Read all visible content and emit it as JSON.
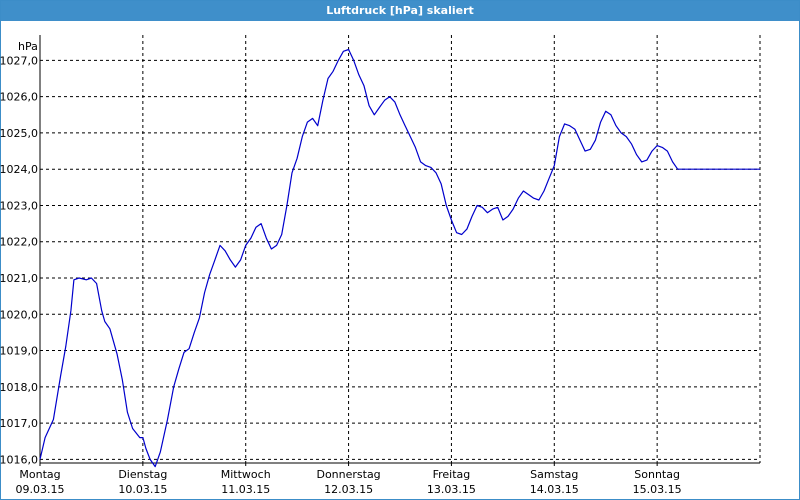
{
  "window": {
    "title": "Luftdruck [hPa] skaliert"
  },
  "chart_data": {
    "type": "line",
    "title": "Luftdruck [hPa] skaliert",
    "ylabel": "hPa",
    "ylim": [
      1015.9,
      1027.7
    ],
    "yticks": [
      "1016,0",
      "1017,0",
      "1018,0",
      "1019,0",
      "1020,0",
      "1021,0",
      "1022,0",
      "1023,0",
      "1024,0",
      "1025,0",
      "1026,0",
      "1027,0"
    ],
    "ytick_values": [
      1016,
      1017,
      1018,
      1019,
      1020,
      1021,
      1022,
      1023,
      1024,
      1025,
      1026,
      1027
    ],
    "xlim": [
      0,
      7
    ],
    "xticks": [
      {
        "day": "Montag",
        "date": "09.03.15"
      },
      {
        "day": "Dienstag",
        "date": "10.03.15"
      },
      {
        "day": "Mittwoch",
        "date": "11.03.15"
      },
      {
        "day": "Donnerstag",
        "date": "12.03.15"
      },
      {
        "day": "Freitag",
        "date": "13.03.15"
      },
      {
        "day": "Samstag",
        "date": "14.03.15"
      },
      {
        "day": "Sonntag",
        "date": "15.03.15"
      }
    ],
    "grid": true,
    "colors": {
      "line": "#0000cc",
      "axis": "#000000",
      "grid": "#000000"
    },
    "x": [
      0,
      0.05,
      0.13,
      0.2,
      0.25,
      0.3,
      0.33,
      0.38,
      0.45,
      0.5,
      0.55,
      0.6,
      0.63,
      0.68,
      0.75,
      0.8,
      0.85,
      0.9,
      0.97,
      1.0,
      1.03,
      1.07,
      1.12,
      1.17,
      1.24,
      1.3,
      1.35,
      1.4,
      1.45,
      1.5,
      1.55,
      1.6,
      1.65,
      1.7,
      1.75,
      1.8,
      1.85,
      1.9,
      1.95,
      2.0,
      2.05,
      2.1,
      2.15,
      2.2,
      2.25,
      2.3,
      2.35,
      2.4,
      2.45,
      2.5,
      2.55,
      2.6,
      2.65,
      2.7,
      2.75,
      2.8,
      2.85,
      2.9,
      2.95,
      3.0,
      3.05,
      3.1,
      3.15,
      3.2,
      3.25,
      3.3,
      3.35,
      3.4,
      3.45,
      3.5,
      3.55,
      3.6,
      3.65,
      3.7,
      3.75,
      3.8,
      3.85,
      3.9,
      3.95,
      4.0,
      4.05,
      4.1,
      4.15,
      4.2,
      4.25,
      4.3,
      4.35,
      4.4,
      4.45,
      4.5,
      4.55,
      4.6,
      4.65,
      4.7,
      4.75,
      4.8,
      4.85,
      4.9,
      4.95,
      5.0,
      5.05,
      5.1,
      5.15,
      5.2,
      5.25,
      5.3,
      5.35,
      5.4,
      5.45,
      5.5,
      5.55,
      5.6,
      5.65,
      5.7,
      5.75,
      5.8,
      5.85,
      5.9,
      5.95,
      6.0,
      6.05,
      6.1,
      6.15,
      6.2,
      6.25,
      6.3,
      6.35,
      6.4,
      6.45,
      6.5,
      6.55,
      6.6,
      6.65,
      6.7,
      6.75,
      6.8,
      6.85,
      6.9,
      6.95,
      7.0
    ],
    "values": [
      1016.0,
      1016.6,
      1017.1,
      1018.3,
      1019.1,
      1020.1,
      1020.95,
      1021.0,
      1020.95,
      1021.0,
      1020.85,
      1020.1,
      1019.8,
      1019.6,
      1018.9,
      1018.2,
      1017.3,
      1016.85,
      1016.6,
      1016.6,
      1016.3,
      1016.0,
      1015.8,
      1016.2,
      1017.1,
      1018.0,
      1018.5,
      1018.95,
      1019.05,
      1019.5,
      1019.9,
      1020.6,
      1021.1,
      1021.5,
      1021.9,
      1021.75,
      1021.5,
      1021.3,
      1021.5,
      1021.9,
      1022.1,
      1022.4,
      1022.5,
      1022.1,
      1021.8,
      1021.9,
      1022.2,
      1023.0,
      1023.9,
      1024.3,
      1024.9,
      1025.3,
      1025.4,
      1025.2,
      1025.9,
      1026.5,
      1026.7,
      1027.0,
      1027.25,
      1027.3,
      1027.0,
      1026.6,
      1026.3,
      1025.75,
      1025.5,
      1025.7,
      1025.9,
      1026.0,
      1025.85,
      1025.5,
      1025.2,
      1024.9,
      1024.6,
      1024.2,
      1024.1,
      1024.05,
      1023.9,
      1023.6,
      1023.0,
      1022.6,
      1022.25,
      1022.2,
      1022.35,
      1022.7,
      1023.0,
      1022.95,
      1022.8,
      1022.9,
      1022.95,
      1022.6,
      1022.7,
      1022.9,
      1023.2,
      1023.4,
      1023.3,
      1023.2,
      1023.15,
      1023.4,
      1023.75,
      1024.1,
      1024.9,
      1025.25,
      1025.2,
      1025.1,
      1024.8,
      1024.5,
      1024.55,
      1024.8,
      1025.3,
      1025.6,
      1025.5,
      1025.2,
      1025.0,
      1024.9,
      1024.7,
      1024.4,
      1024.2,
      1024.25,
      1024.5,
      1024.65,
      1024.6,
      1024.5,
      1024.2,
      1024.0,
      1024.0,
      1024.0,
      1024.0,
      1024.0,
      1024.0,
      1024.0,
      1024.0,
      1024.0,
      1024.0,
      1024.0,
      1024.0,
      1024.0,
      1024.0,
      1024.0,
      1024.0,
      1024.0
    ]
  }
}
